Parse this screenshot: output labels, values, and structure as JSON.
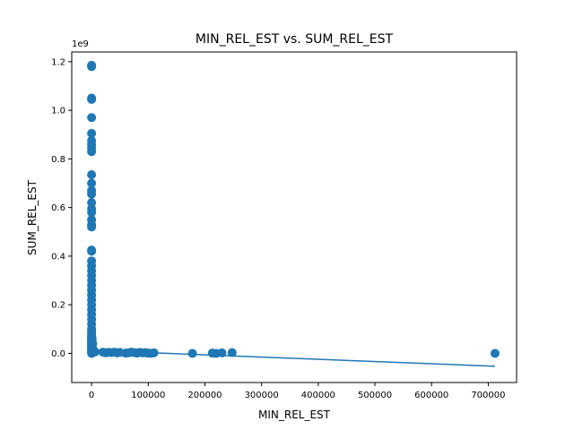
{
  "chart_data": {
    "type": "scatter",
    "title": "MIN_REL_EST vs. SUM_REL_EST",
    "xlabel": "MIN_REL_EST",
    "ylabel": "SUM_REL_EST",
    "y_offset_label": "1e9",
    "y_scale": 1000000000,
    "xlim": [
      -35000,
      750000
    ],
    "ylim": [
      -0.12,
      1.24
    ],
    "x_ticks": [
      0,
      100000,
      200000,
      300000,
      400000,
      500000,
      600000,
      700000
    ],
    "x_tick_labels": [
      "0",
      "100000",
      "200000",
      "300000",
      "400000",
      "500000",
      "600000",
      "700000"
    ],
    "y_ticks": [
      0.0,
      0.2,
      0.4,
      0.6,
      0.8,
      1.0,
      1.2
    ],
    "y_tick_labels": [
      "0.0",
      "0.2",
      "0.4",
      "0.6",
      "0.8",
      "1.0",
      "1.2"
    ],
    "grid": false,
    "color": "#1f77b4",
    "series": [
      {
        "type": "scatter",
        "x": [
          0,
          0,
          0,
          0,
          0,
          0,
          0,
          0,
          0,
          0,
          0,
          0,
          0,
          0,
          0,
          0,
          0,
          0,
          0,
          0,
          0,
          0,
          0,
          0,
          0,
          0,
          0,
          0,
          0,
          0,
          0,
          0,
          0,
          0,
          0,
          0,
          0,
          0,
          0,
          0,
          0,
          0,
          0,
          0,
          0,
          0,
          0,
          0,
          0,
          0,
          0,
          0,
          0,
          0,
          0,
          500,
          1000,
          1500,
          2000,
          3000,
          5000,
          1000,
          2000,
          4000,
          6000,
          20000,
          25000,
          30000,
          35000,
          40000,
          45000,
          50000,
          60000,
          65000,
          70000,
          75000,
          80000,
          85000,
          90000,
          95000,
          100000,
          105000,
          110000,
          178000,
          213000,
          220000,
          230000,
          248000,
          712000
        ],
        "y": [
          1.185,
          1.18,
          1.05,
          1.045,
          0.97,
          0.905,
          0.875,
          0.86,
          0.845,
          0.83,
          0.735,
          0.7,
          0.67,
          0.655,
          0.62,
          0.595,
          0.58,
          0.55,
          0.53,
          0.52,
          0.425,
          0.42,
          0.38,
          0.36,
          0.34,
          0.32,
          0.3,
          0.28,
          0.26,
          0.24,
          0.22,
          0.2,
          0.18,
          0.16,
          0.14,
          0.12,
          0.1,
          0.09,
          0.08,
          0.07,
          0.06,
          0.05,
          0.04,
          0.03,
          0.02,
          0.01,
          0.0,
          0.005,
          0.015,
          0.025,
          0.035,
          0.045,
          0.055,
          0.065,
          0.075,
          0.05,
          0.03,
          0.02,
          0.015,
          0.01,
          0.008,
          0.06,
          0.04,
          0.012,
          0.006,
          0.005,
          0.002,
          0.004,
          0.003,
          0.005,
          0.002,
          0.004,
          0.001,
          0.002,
          0.005,
          0.003,
          0.001,
          0.004,
          0.002,
          0.003,
          0.001,
          0.0,
          0.002,
          0.0,
          0.001,
          0.0,
          0.002,
          0.003,
          0.0
        ]
      },
      {
        "type": "line",
        "x": [
          0,
          712000
        ],
        "y": [
          0.012,
          -0.053
        ]
      }
    ]
  }
}
